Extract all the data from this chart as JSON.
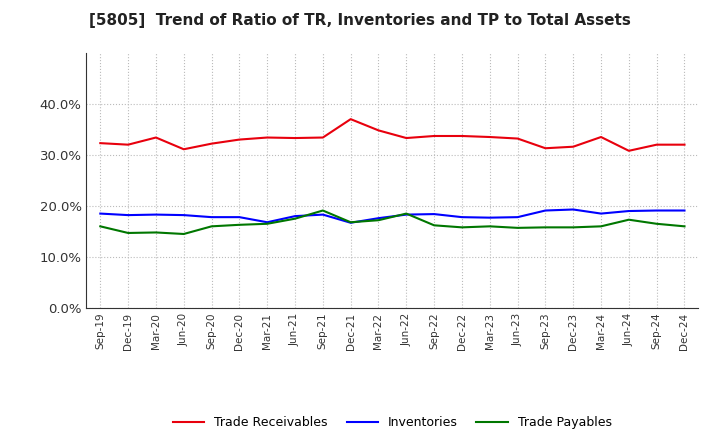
{
  "title": "[5805]  Trend of Ratio of TR, Inventories and TP to Total Assets",
  "x_labels": [
    "Sep-19",
    "Dec-19",
    "Mar-20",
    "Jun-20",
    "Sep-20",
    "Dec-20",
    "Mar-21",
    "Jun-21",
    "Sep-21",
    "Dec-21",
    "Mar-22",
    "Jun-22",
    "Sep-22",
    "Dec-22",
    "Mar-23",
    "Jun-23",
    "Sep-23",
    "Dec-23",
    "Mar-24",
    "Jun-24",
    "Sep-24",
    "Dec-24"
  ],
  "trade_receivables": [
    0.323,
    0.32,
    0.334,
    0.311,
    0.322,
    0.33,
    0.334,
    0.333,
    0.334,
    0.37,
    0.348,
    0.333,
    0.337,
    0.337,
    0.335,
    0.332,
    0.313,
    0.316,
    0.335,
    0.308,
    0.32,
    0.32
  ],
  "inventories": [
    0.185,
    0.182,
    0.183,
    0.182,
    0.178,
    0.178,
    0.168,
    0.18,
    0.183,
    0.167,
    0.176,
    0.183,
    0.184,
    0.178,
    0.177,
    0.178,
    0.191,
    0.193,
    0.185,
    0.19,
    0.191,
    0.191
  ],
  "trade_payables": [
    0.16,
    0.147,
    0.148,
    0.145,
    0.16,
    0.163,
    0.165,
    0.175,
    0.191,
    0.168,
    0.172,
    0.185,
    0.162,
    0.158,
    0.16,
    0.157,
    0.158,
    0.158,
    0.16,
    0.173,
    0.165,
    0.16
  ],
  "ylim": [
    0.0,
    0.5
  ],
  "yticks": [
    0.0,
    0.1,
    0.2,
    0.3,
    0.4
  ],
  "colors": {
    "trade_receivables": "#e8000d",
    "inventories": "#0000ff",
    "trade_payables": "#007700",
    "background": "#ffffff",
    "grid": "#aaaaaa"
  },
  "legend_labels": [
    "Trade Receivables",
    "Inventories",
    "Trade Payables"
  ]
}
